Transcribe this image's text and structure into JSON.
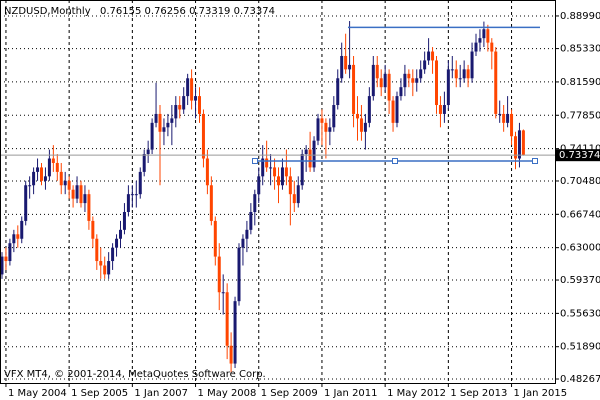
{
  "chart_data": {
    "type": "candlestick",
    "header": {
      "symbol": "NZDUSD,Monthly",
      "ohlc": "0.76155 0.76256 0.73319 0.73374"
    },
    "footer": "VFX MT4, © 2001-2014, MetaQuotes Software Corp.",
    "bull_color": "#191970",
    "bear_color": "#ff4500",
    "grid": true,
    "ylim": [
      0.4782,
      0.9078
    ],
    "yticks": [
      {
        "value": 0.8899,
        "label": "0.88990"
      },
      {
        "value": 0.8533,
        "label": "0.85330"
      },
      {
        "value": 0.8159,
        "label": "0.81590"
      },
      {
        "value": 0.7785,
        "label": "0.77850"
      },
      {
        "value": 0.7411,
        "label": "0.74110"
      },
      {
        "value": 0.7048,
        "label": "0.70480"
      },
      {
        "value": 0.6674,
        "label": "0.66740"
      },
      {
        "value": 0.63,
        "label": "0.63000"
      },
      {
        "value": 0.5937,
        "label": "0.59370"
      },
      {
        "value": 0.5563,
        "label": "0.55630"
      },
      {
        "value": 0.5189,
        "label": "0.51890"
      },
      0.48267
    ],
    "xtick_labels": [
      "1 May 2004",
      "1 Sep 2005",
      "1 Jan 2007",
      "1 May 2008",
      "1 Sep 2009",
      "1 Jan 2011",
      "1 May 2012",
      "1 Sep 2013",
      "1 Jan 2015"
    ],
    "current_price": 0.73374,
    "hlines": [
      0.8771,
      0.7272
    ],
    "ohlc": [
      [
        0.6,
        0.625,
        0.595,
        0.62
      ],
      [
        0.62,
        0.63,
        0.605,
        0.615
      ],
      [
        0.615,
        0.64,
        0.61,
        0.635
      ],
      [
        0.635,
        0.65,
        0.625,
        0.645
      ],
      [
        0.645,
        0.655,
        0.63,
        0.64
      ],
      [
        0.64,
        0.665,
        0.635,
        0.66
      ],
      [
        0.66,
        0.705,
        0.655,
        0.7
      ],
      [
        0.7,
        0.71,
        0.685,
        0.7
      ],
      [
        0.7,
        0.72,
        0.69,
        0.715
      ],
      [
        0.715,
        0.73,
        0.705,
        0.72
      ],
      [
        0.72,
        0.725,
        0.7,
        0.705
      ],
      [
        0.705,
        0.72,
        0.695,
        0.71
      ],
      [
        0.71,
        0.74,
        0.705,
        0.73
      ],
      [
        0.73,
        0.745,
        0.715,
        0.725
      ],
      [
        0.725,
        0.735,
        0.705,
        0.715
      ],
      [
        0.715,
        0.725,
        0.69,
        0.7
      ],
      [
        0.7,
        0.715,
        0.69,
        0.705
      ],
      [
        0.705,
        0.71,
        0.685,
        0.695
      ],
      [
        0.695,
        0.7,
        0.675,
        0.685
      ],
      [
        0.685,
        0.71,
        0.68,
        0.7
      ],
      [
        0.7,
        0.705,
        0.675,
        0.68
      ],
      [
        0.68,
        0.7,
        0.67,
        0.69
      ],
      [
        0.69,
        0.695,
        0.65,
        0.66
      ],
      [
        0.66,
        0.665,
        0.63,
        0.64
      ],
      [
        0.64,
        0.645,
        0.605,
        0.615
      ],
      [
        0.615,
        0.63,
        0.595,
        0.61
      ],
      [
        0.61,
        0.62,
        0.595,
        0.6
      ],
      [
        0.6,
        0.625,
        0.595,
        0.615
      ],
      [
        0.615,
        0.635,
        0.605,
        0.63
      ],
      [
        0.63,
        0.645,
        0.62,
        0.64
      ],
      [
        0.64,
        0.66,
        0.63,
        0.65
      ],
      [
        0.65,
        0.68,
        0.645,
        0.67
      ],
      [
        0.67,
        0.7,
        0.665,
        0.69
      ],
      [
        0.69,
        0.7,
        0.675,
        0.69
      ],
      [
        0.69,
        0.705,
        0.675,
        0.69
      ],
      [
        0.69,
        0.72,
        0.685,
        0.715
      ],
      [
        0.715,
        0.74,
        0.71,
        0.735
      ],
      [
        0.735,
        0.75,
        0.725,
        0.74
      ],
      [
        0.74,
        0.775,
        0.735,
        0.77
      ],
      [
        0.77,
        0.815,
        0.765,
        0.78
      ],
      [
        0.78,
        0.79,
        0.7,
        0.76
      ],
      [
        0.76,
        0.775,
        0.745,
        0.765
      ],
      [
        0.765,
        0.78,
        0.755,
        0.77
      ],
      [
        0.77,
        0.79,
        0.745,
        0.775
      ],
      [
        0.775,
        0.8,
        0.765,
        0.79
      ],
      [
        0.79,
        0.8,
        0.775,
        0.785
      ],
      [
        0.785,
        0.81,
        0.78,
        0.8
      ],
      [
        0.8,
        0.825,
        0.79,
        0.82
      ],
      [
        0.82,
        0.83,
        0.785,
        0.795
      ],
      [
        0.795,
        0.81,
        0.775,
        0.8
      ],
      [
        0.8,
        0.81,
        0.77,
        0.78
      ],
      [
        0.78,
        0.785,
        0.72,
        0.73
      ],
      [
        0.73,
        0.74,
        0.69,
        0.7
      ],
      [
        0.7,
        0.71,
        0.655,
        0.66
      ],
      [
        0.66,
        0.665,
        0.61,
        0.62
      ],
      [
        0.62,
        0.635,
        0.56,
        0.58
      ],
      [
        0.58,
        0.6,
        0.555,
        0.58
      ],
      [
        0.58,
        0.59,
        0.505,
        0.52
      ],
      [
        0.52,
        0.535,
        0.49,
        0.5
      ],
      [
        0.5,
        0.575,
        0.495,
        0.57
      ],
      [
        0.57,
        0.635,
        0.565,
        0.63
      ],
      [
        0.63,
        0.645,
        0.61,
        0.64
      ],
      [
        0.64,
        0.66,
        0.625,
        0.65
      ],
      [
        0.65,
        0.68,
        0.645,
        0.67
      ],
      [
        0.67,
        0.695,
        0.655,
        0.69
      ],
      [
        0.69,
        0.72,
        0.68,
        0.71
      ],
      [
        0.71,
        0.745,
        0.7,
        0.73
      ],
      [
        0.73,
        0.75,
        0.715,
        0.72
      ],
      [
        0.72,
        0.735,
        0.7,
        0.72
      ],
      [
        0.72,
        0.73,
        0.695,
        0.71
      ],
      [
        0.71,
        0.72,
        0.68,
        0.7
      ],
      [
        0.7,
        0.73,
        0.695,
        0.72
      ],
      [
        0.72,
        0.74,
        0.7,
        0.71
      ],
      [
        0.71,
        0.72,
        0.655,
        0.69
      ],
      [
        0.69,
        0.705,
        0.67,
        0.68
      ],
      [
        0.68,
        0.71,
        0.675,
        0.7
      ],
      [
        0.7,
        0.74,
        0.695,
        0.735
      ],
      [
        0.735,
        0.745,
        0.715,
        0.74
      ],
      [
        0.74,
        0.76,
        0.715,
        0.72
      ],
      [
        0.72,
        0.755,
        0.715,
        0.75
      ],
      [
        0.75,
        0.78,
        0.745,
        0.775
      ],
      [
        0.775,
        0.785,
        0.745,
        0.77
      ],
      [
        0.77,
        0.775,
        0.73,
        0.76
      ],
      [
        0.76,
        0.775,
        0.745,
        0.765
      ],
      [
        0.765,
        0.8,
        0.76,
        0.79
      ],
      [
        0.79,
        0.83,
        0.785,
        0.82
      ],
      [
        0.82,
        0.86,
        0.815,
        0.845
      ],
      [
        0.845,
        0.87,
        0.825,
        0.83
      ],
      [
        0.83,
        0.8842,
        0.82,
        0.835
      ],
      [
        0.835,
        0.845,
        0.765,
        0.78
      ],
      [
        0.78,
        0.8,
        0.75,
        0.775
      ],
      [
        0.775,
        0.79,
        0.75,
        0.76
      ],
      [
        0.76,
        0.78,
        0.74,
        0.77
      ],
      [
        0.77,
        0.81,
        0.765,
        0.8
      ],
      [
        0.8,
        0.845,
        0.795,
        0.835
      ],
      [
        0.835,
        0.845,
        0.81,
        0.82
      ],
      [
        0.82,
        0.83,
        0.8,
        0.81
      ],
      [
        0.81,
        0.835,
        0.805,
        0.825
      ],
      [
        0.825,
        0.83,
        0.78,
        0.795
      ],
      [
        0.795,
        0.8,
        0.76,
        0.77
      ],
      [
        0.77,
        0.805,
        0.765,
        0.8
      ],
      [
        0.8,
        0.82,
        0.795,
        0.81
      ],
      [
        0.81,
        0.835,
        0.8,
        0.825
      ],
      [
        0.825,
        0.83,
        0.81,
        0.82
      ],
      [
        0.82,
        0.83,
        0.8,
        0.815
      ],
      [
        0.815,
        0.83,
        0.805,
        0.82
      ],
      [
        0.82,
        0.84,
        0.815,
        0.83
      ],
      [
        0.83,
        0.85,
        0.825,
        0.84
      ],
      [
        0.84,
        0.865,
        0.835,
        0.85
      ],
      [
        0.85,
        0.855,
        0.825,
        0.84
      ],
      [
        0.84,
        0.845,
        0.78,
        0.79
      ],
      [
        0.79,
        0.8,
        0.765,
        0.78
      ],
      [
        0.78,
        0.805,
        0.77,
        0.79
      ],
      [
        0.79,
        0.84,
        0.785,
        0.83
      ],
      [
        0.83,
        0.845,
        0.82,
        0.83
      ],
      [
        0.83,
        0.84,
        0.81,
        0.82
      ],
      [
        0.82,
        0.835,
        0.81,
        0.82
      ],
      [
        0.82,
        0.84,
        0.815,
        0.83
      ],
      [
        0.83,
        0.835,
        0.81,
        0.82
      ],
      [
        0.82,
        0.86,
        0.815,
        0.85
      ],
      [
        0.85,
        0.87,
        0.845,
        0.86
      ],
      [
        0.86,
        0.875,
        0.85,
        0.865
      ],
      [
        0.865,
        0.8836,
        0.855,
        0.875
      ],
      [
        0.875,
        0.88,
        0.85,
        0.86
      ],
      [
        0.86,
        0.865,
        0.83,
        0.85
      ],
      [
        0.85,
        0.855,
        0.775,
        0.78
      ],
      [
        0.78,
        0.795,
        0.77,
        0.78
      ],
      [
        0.78,
        0.79,
        0.76,
        0.77
      ],
      [
        0.77,
        0.8,
        0.765,
        0.78
      ],
      [
        0.78,
        0.785,
        0.745,
        0.755
      ],
      [
        0.755,
        0.76,
        0.718,
        0.73
      ],
      [
        0.73,
        0.77,
        0.72,
        0.7616
      ],
      [
        0.76155,
        0.76256,
        0.73319,
        0.73374
      ]
    ]
  }
}
